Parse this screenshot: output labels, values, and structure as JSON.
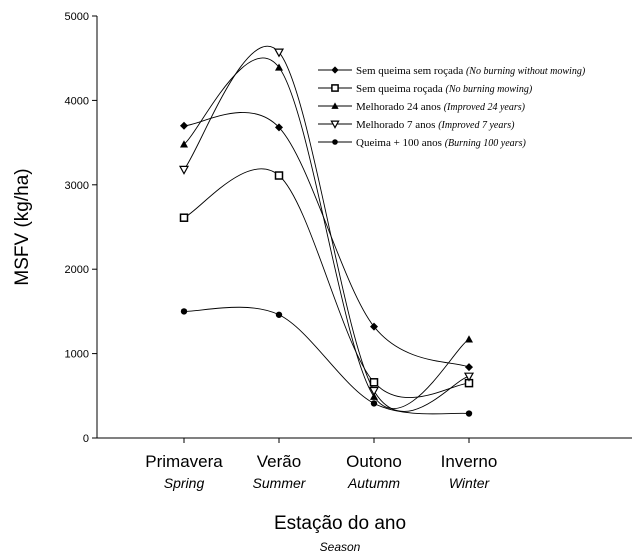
{
  "chart_data": {
    "type": "line",
    "categories": [
      "Primavera",
      "Verão",
      "Outono",
      "Inverno"
    ],
    "categories_sub": [
      "Spring",
      "Summer",
      "Autumm",
      "Winter"
    ],
    "xlabel": "Estação do ano",
    "xlabel_sub": "Season",
    "ylabel": "MSFV (kg/ha)",
    "ylim": [
      0,
      5000
    ],
    "yticks": [
      "0",
      "1000",
      "2000",
      "3000",
      "4000",
      "5000"
    ],
    "grid": false,
    "legend_position": "top-right",
    "series": [
      {
        "name": "Sem queima sem roçada",
        "name_sub": "(No burning without mowing)",
        "marker": "diamond-filled",
        "values": [
          3700,
          3680,
          1320,
          840
        ]
      },
      {
        "name": "Sem queima roçada",
        "name_sub": "(No burning mowing)",
        "marker": "square-open",
        "values": [
          2610,
          3110,
          660,
          650
        ]
      },
      {
        "name": "Melhorado 24 anos",
        "name_sub": "(Improved 24 years)",
        "marker": "triangle-up-filled",
        "values": [
          3480,
          4390,
          490,
          1170
        ]
      },
      {
        "name": "Melhorado 7 anos",
        "name_sub": "(Improved 7 years)",
        "marker": "triangle-down-open",
        "values": [
          3180,
          4570,
          560,
          730
        ]
      },
      {
        "name": "Queima + 100 anos",
        "name_sub": "(Burning 100 years)",
        "marker": "circle-filled",
        "values": [
          1500,
          1460,
          410,
          290
        ]
      }
    ]
  }
}
